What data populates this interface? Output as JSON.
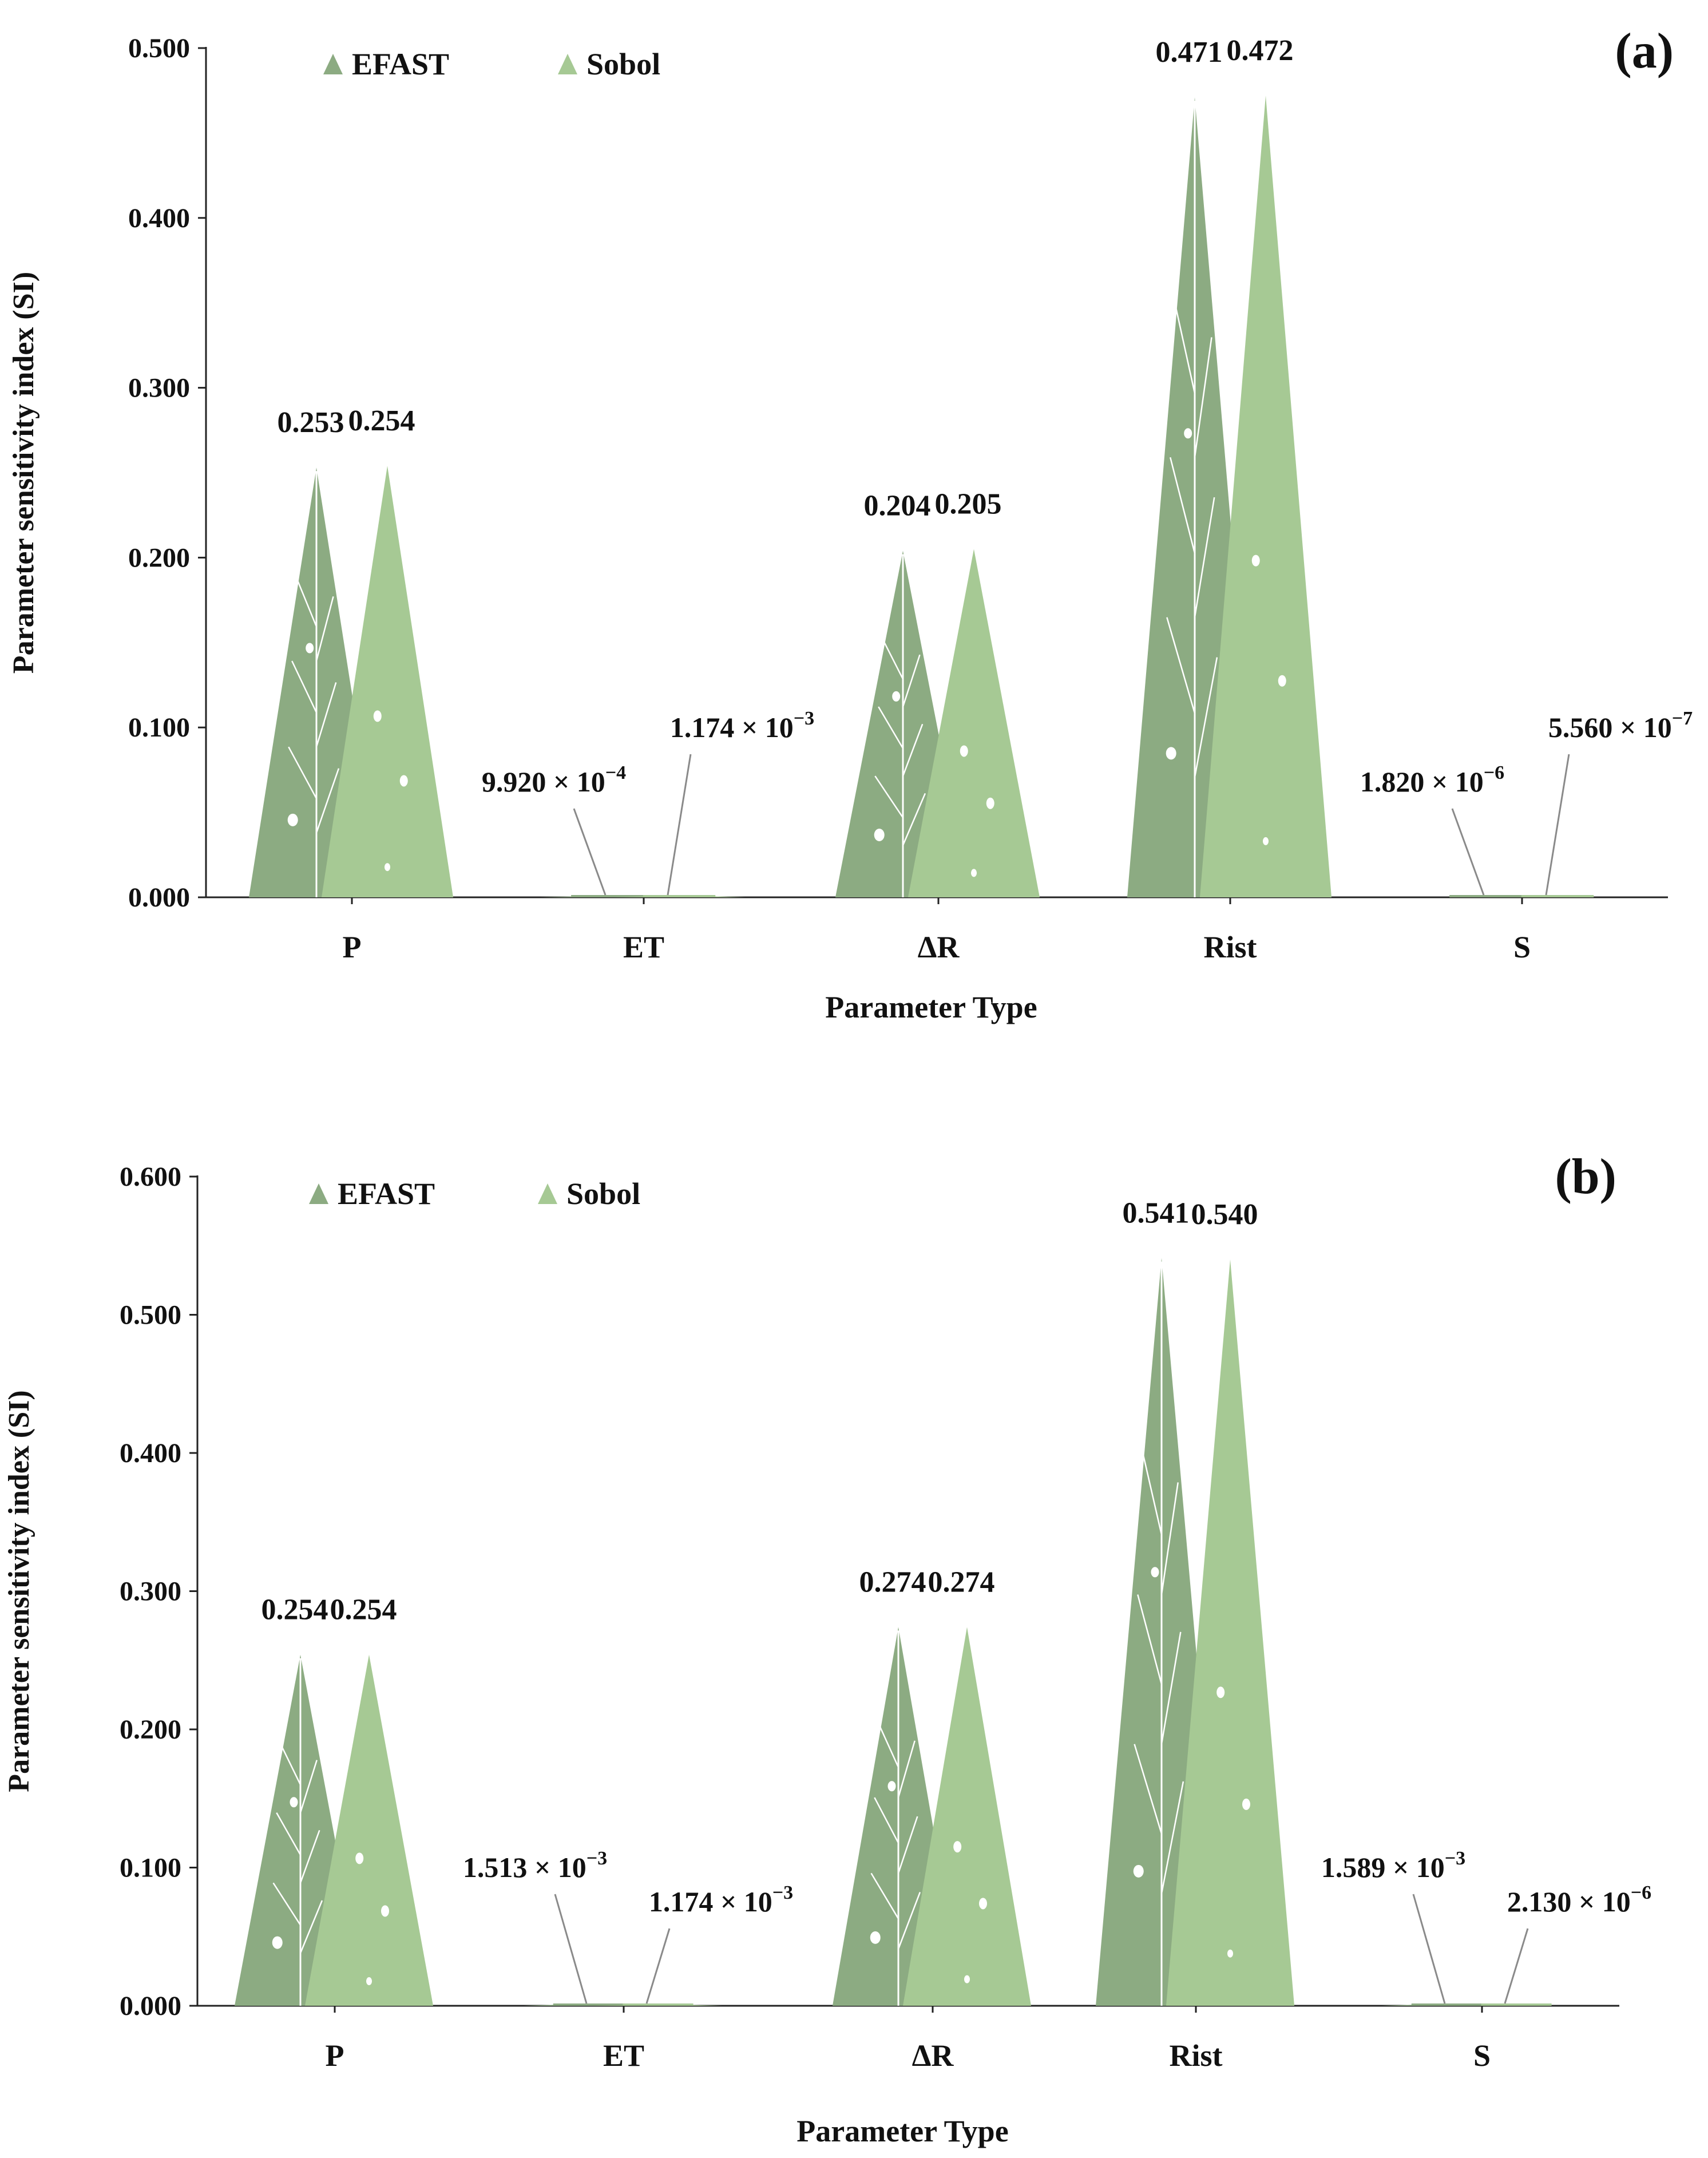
{
  "colors": {
    "efast": "#8cab82",
    "sobol": "#a6c994",
    "axis": "#222222",
    "leader": "#8a8a8a",
    "vein": "#ffffff"
  },
  "chart_data": [
    {
      "panel_label": "(a)",
      "type": "bar",
      "mark_shape": "triangle",
      "xlabel": "Parameter Type",
      "ylabel": "Parameter sensitivity index (SI)",
      "ylim": [
        0,
        0.5
      ],
      "yticks": [
        "0.000",
        "0.100",
        "0.200",
        "0.300",
        "0.400",
        "0.500"
      ],
      "categories": [
        "P",
        "ET",
        "ΔR",
        "Rist",
        "S"
      ],
      "legend": [
        "EFAST",
        "Sobol"
      ],
      "series": [
        {
          "name": "EFAST",
          "values": [
            0.253,
            0.000992,
            0.204,
            0.471,
            1.82e-06
          ]
        },
        {
          "name": "Sobol",
          "values": [
            0.254,
            0.001174,
            0.205,
            0.472,
            5.56e-07
          ]
        }
      ],
      "value_labels": [
        {
          "mantissa": [
            "0.253",
            "",
            "0.204",
            "0.471",
            ""
          ],
          "small": [
            null,
            [
              "9.920 × 10",
              "−4"
            ],
            null,
            null,
            [
              "1.820 × 10",
              "−6"
            ]
          ]
        },
        {
          "mantissa": [
            "0.254",
            "",
            "0.205",
            "0.472",
            ""
          ],
          "small": [
            null,
            [
              "1.174 × 10",
              "−3"
            ],
            null,
            null,
            [
              "5.560 × 10",
              "−7"
            ]
          ]
        }
      ]
    },
    {
      "panel_label": "(b)",
      "type": "bar",
      "mark_shape": "triangle",
      "xlabel": "Parameter Type",
      "ylabel": "Parameter sensitivity index (SI)",
      "ylim": [
        0,
        0.6
      ],
      "yticks": [
        "0.000",
        "0.100",
        "0.200",
        "0.300",
        "0.400",
        "0.500",
        "0.600"
      ],
      "categories": [
        "P",
        "ET",
        "ΔR",
        "Rist",
        "S"
      ],
      "legend": [
        "EFAST",
        "Sobol"
      ],
      "series": [
        {
          "name": "EFAST",
          "values": [
            0.254,
            0.001513,
            0.274,
            0.541,
            0.001589
          ]
        },
        {
          "name": "Sobol",
          "values": [
            0.254,
            0.001174,
            0.274,
            0.54,
            2.13e-06
          ]
        }
      ],
      "value_labels": [
        {
          "mantissa": [
            "0.254",
            "",
            "0.274",
            "0.541",
            ""
          ],
          "small": [
            null,
            [
              "1.513 × 10",
              "−3"
            ],
            null,
            null,
            [
              "1.589 × 10",
              "−3"
            ]
          ]
        },
        {
          "mantissa": [
            "0.254",
            "",
            "0.274",
            "0.540",
            ""
          ],
          "small": [
            null,
            [
              "1.174 × 10",
              "−3"
            ],
            null,
            null,
            [
              "2.130 × 10",
              "−6"
            ]
          ]
        }
      ]
    }
  ]
}
